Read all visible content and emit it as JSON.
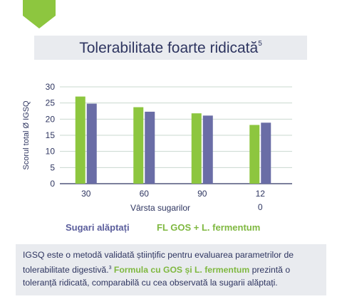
{
  "title": {
    "text": "Tolerabilitate foarte ridicată",
    "superscript": "5"
  },
  "chart_data": {
    "type": "bar",
    "title": "Tolerabilitate foarte ridicată",
    "xlabel": "Vârsta sugarilor",
    "ylabel": "Scorul total Ø IGSQ",
    "categories": [
      "30",
      "60",
      "90",
      "12\n0"
    ],
    "category_labels": [
      [
        "30"
      ],
      [
        "60"
      ],
      [
        "90"
      ],
      [
        "12",
        "0"
      ]
    ],
    "ylim": [
      0,
      30
    ],
    "yticks": [
      0,
      5,
      10,
      15,
      20,
      25,
      30
    ],
    "grid": true,
    "series": [
      {
        "name": "FL GOS + L. fermentum",
        "color": "#8dc63f",
        "values": [
          27.0,
          23.7,
          21.8,
          18.2
        ]
      },
      {
        "name": "Sugari alăptați",
        "color": "#6a6da6",
        "values": [
          24.8,
          22.3,
          21.1,
          18.9
        ]
      }
    ]
  },
  "legend": {
    "breastfed": "Sugari alăptați",
    "formula": "FL GOS + L. fermentum"
  },
  "footer": {
    "part1": "IGSQ este o metodă validată științific pentru evaluarea parametrilor de tolerabilitate digestivă.",
    "sup": "3",
    "highlight": "Formula cu GOS și L. fermentum",
    "part2": "prezintă o toleranță ridicată, comparabilă cu cea observată la sugarii alăptați."
  },
  "colors": {
    "accent_green": "#8dc63f",
    "navy": "#2e3560",
    "bar_blue": "#6a6da6",
    "band_grey": "#e9ebef"
  }
}
